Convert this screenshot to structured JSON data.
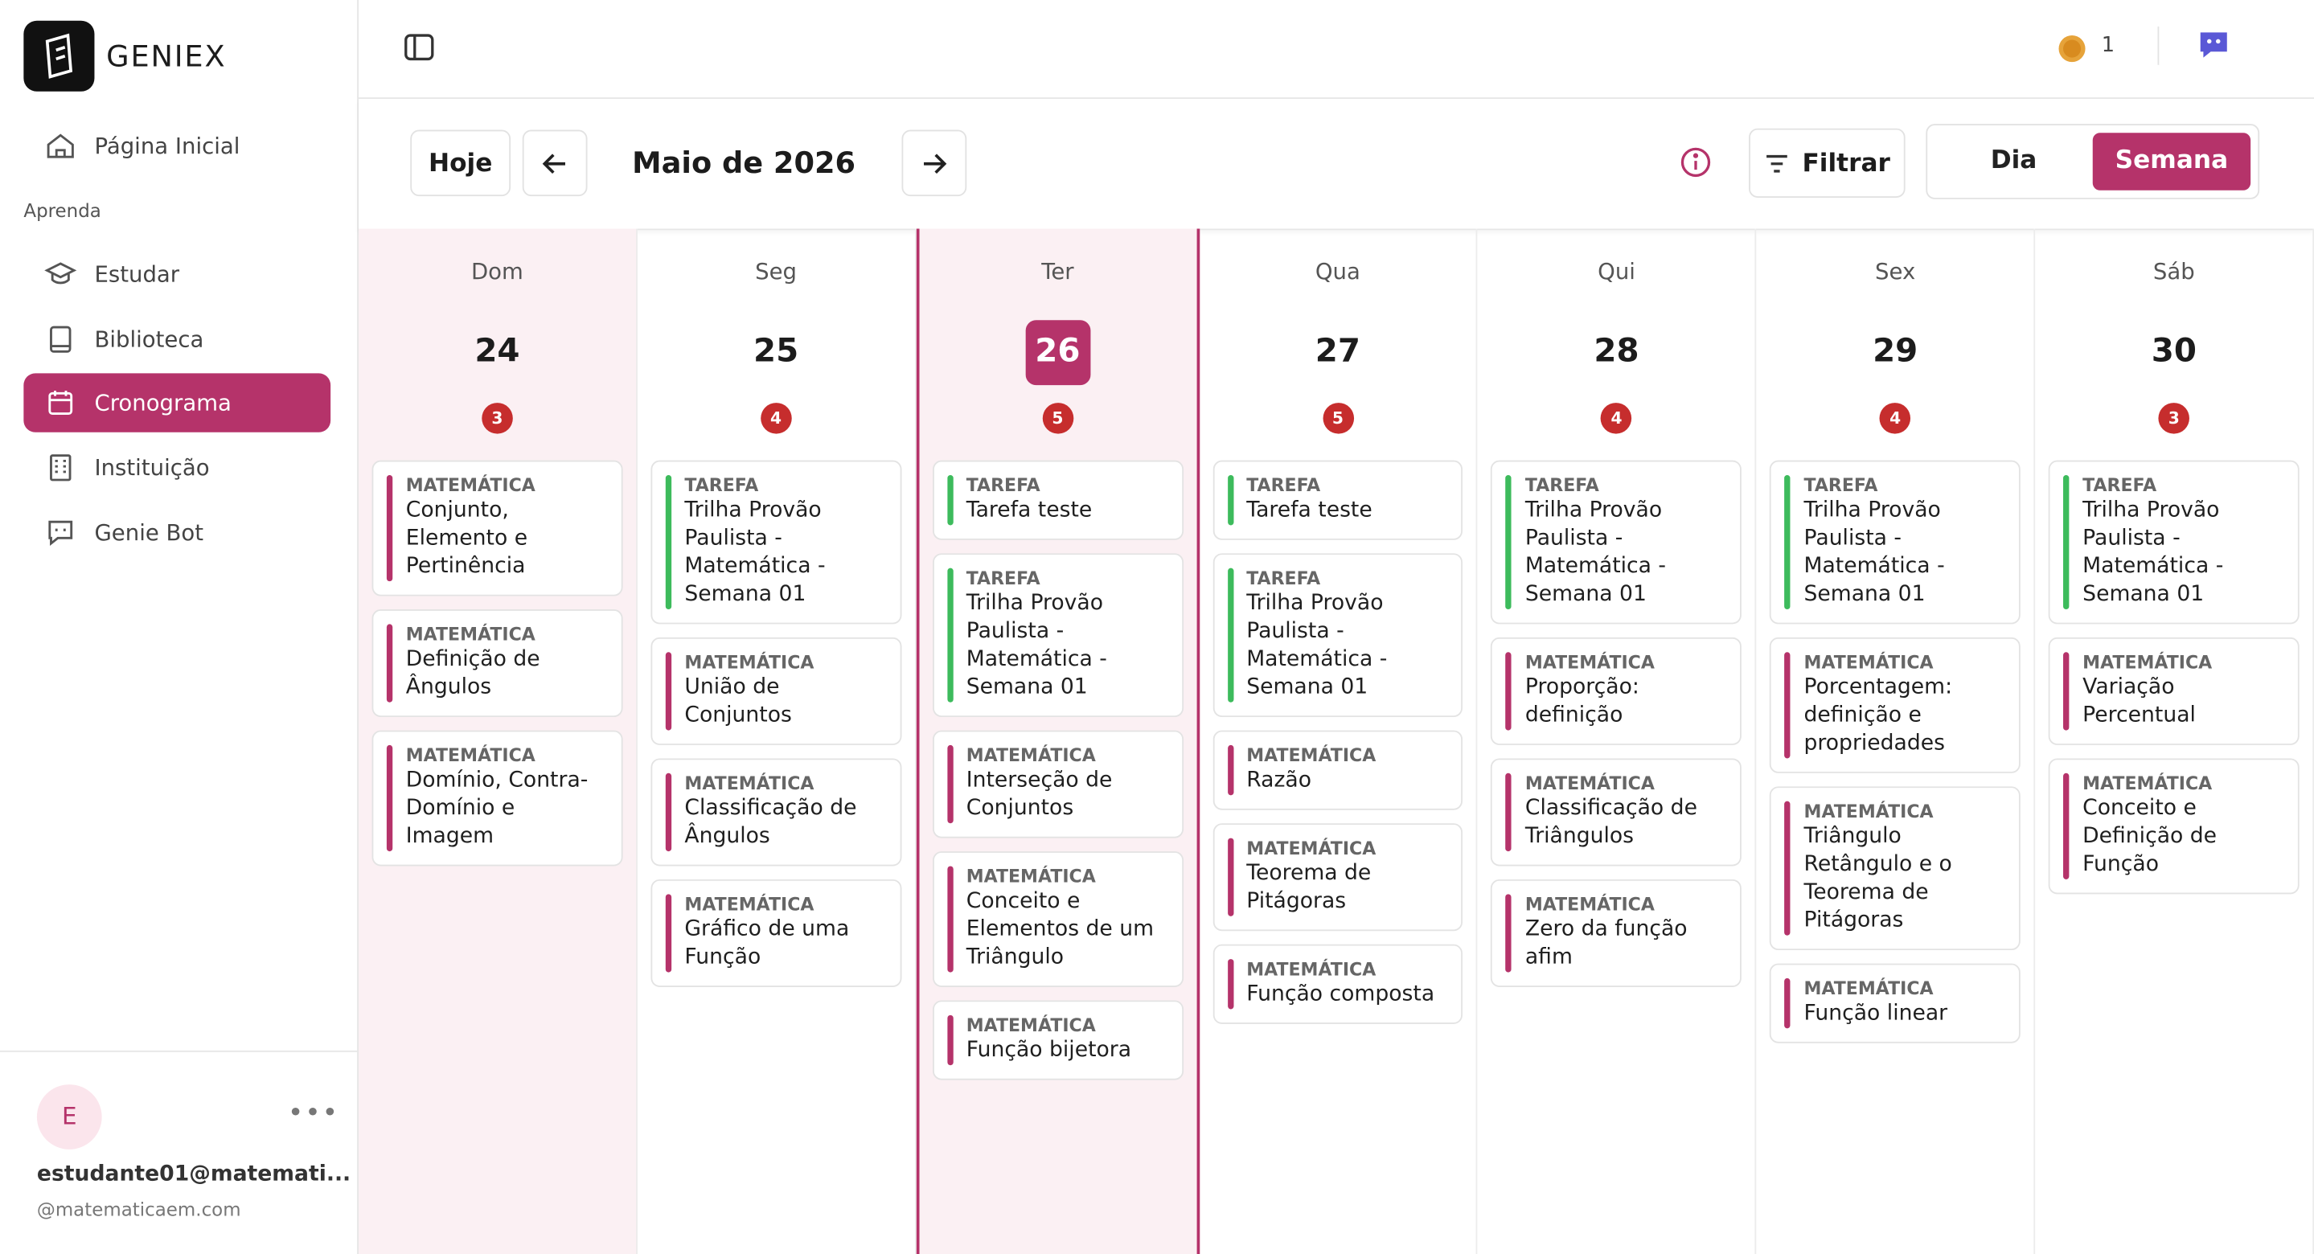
{
  "sidebar": {
    "brand": "GENIEX",
    "home": "Página Inicial",
    "section_label": "Aprenda",
    "nav": [
      {
        "label": "Estudar",
        "active": false
      },
      {
        "label": "Biblioteca",
        "active": false
      },
      {
        "label": "Cronograma",
        "active": true
      },
      {
        "label": "Instituição",
        "active": false
      },
      {
        "label": "Genie Bot",
        "active": false
      }
    ],
    "user": {
      "avatar": "E",
      "email": "estudante01@matemati...",
      "handle": "@matematicaem.com"
    }
  },
  "header": {
    "coins": 1
  },
  "toolbar": {
    "today": "Hoje",
    "month": "Maio de 2026",
    "filter": "Filtrar",
    "views": [
      {
        "label": "Dia",
        "active": false
      },
      {
        "label": "Semana",
        "active": true
      }
    ]
  },
  "days": [
    {
      "weekday": "Dom",
      "date": 24,
      "count": 3,
      "shade": true,
      "today": false,
      "items": [
        {
          "tag": "MATEMÁTICA",
          "title": "Conjunto, Elemento e Pertinência",
          "color": "#b5336a"
        },
        {
          "tag": "MATEMÁTICA",
          "title": "Definição de Ângulos",
          "color": "#b5336a"
        },
        {
          "tag": "MATEMÁTICA",
          "title": "Domínio, Contra-Domínio e Imagem",
          "color": "#b5336a"
        }
      ]
    },
    {
      "weekday": "Seg",
      "date": 25,
      "count": 4,
      "shade": false,
      "today": false,
      "items": [
        {
          "tag": "TAREFA",
          "title": "Trilha Provão Paulista - Matemática - Semana 01",
          "color": "#3dbb5c"
        },
        {
          "tag": "MATEMÁTICA",
          "title": "União de Conjuntos",
          "color": "#b5336a"
        },
        {
          "tag": "MATEMÁTICA",
          "title": "Classificação de Ângulos",
          "color": "#b5336a"
        },
        {
          "tag": "MATEMÁTICA",
          "title": "Gráfico de uma Função",
          "color": "#b5336a"
        }
      ]
    },
    {
      "weekday": "Ter",
      "date": 26,
      "count": 5,
      "shade": true,
      "today": true,
      "items": [
        {
          "tag": "TAREFA",
          "title": "Tarefa teste",
          "color": "#3dbb5c"
        },
        {
          "tag": "TAREFA",
          "title": "Trilha Provão Paulista - Matemática - Semana 01",
          "color": "#3dbb5c"
        },
        {
          "tag": "MATEMÁTICA",
          "title": "Interseção de Conjuntos",
          "color": "#b5336a"
        },
        {
          "tag": "MATEMÁTICA",
          "title": "Conceito e Elementos de um Triângulo",
          "color": "#b5336a"
        },
        {
          "tag": "MATEMÁTICA",
          "title": "Função bijetora",
          "color": "#b5336a"
        }
      ]
    },
    {
      "weekday": "Qua",
      "date": 27,
      "count": 5,
      "shade": false,
      "today": false,
      "items": [
        {
          "tag": "TAREFA",
          "title": "Tarefa teste",
          "color": "#3dbb5c"
        },
        {
          "tag": "TAREFA",
          "title": "Trilha Provão Paulista - Matemática - Semana 01",
          "color": "#3dbb5c"
        },
        {
          "tag": "MATEMÁTICA",
          "title": "Razão",
          "color": "#b5336a"
        },
        {
          "tag": "MATEMÁTICA",
          "title": "Teorema de Pitágoras",
          "color": "#b5336a"
        },
        {
          "tag": "MATEMÁTICA",
          "title": "Função composta",
          "color": "#b5336a"
        }
      ]
    },
    {
      "weekday": "Qui",
      "date": 28,
      "count": 4,
      "shade": false,
      "today": false,
      "items": [
        {
          "tag": "TAREFA",
          "title": "Trilha Provão Paulista - Matemática - Semana 01",
          "color": "#3dbb5c"
        },
        {
          "tag": "MATEMÁTICA",
          "title": "Proporção: definição",
          "color": "#b5336a"
        },
        {
          "tag": "MATEMÁTICA",
          "title": "Classificação de Triângulos",
          "color": "#b5336a"
        },
        {
          "tag": "MATEMÁTICA",
          "title": "Zero da função afim",
          "color": "#b5336a"
        }
      ]
    },
    {
      "weekday": "Sex",
      "date": 29,
      "count": 4,
      "shade": false,
      "today": false,
      "items": [
        {
          "tag": "TAREFA",
          "title": "Trilha Provão Paulista - Matemática - Semana 01",
          "color": "#3dbb5c"
        },
        {
          "tag": "MATEMÁTICA",
          "title": "Porcentagem: definição e propriedades",
          "color": "#b5336a"
        },
        {
          "tag": "MATEMÁTICA",
          "title": "Triângulo Retângulo e o Teorema de Pitágoras",
          "color": "#b5336a"
        },
        {
          "tag": "MATEMÁTICA",
          "title": "Função linear",
          "color": "#b5336a"
        }
      ]
    },
    {
      "weekday": "Sáb",
      "date": 30,
      "count": 3,
      "shade": false,
      "today": false,
      "items": [
        {
          "tag": "TAREFA",
          "title": "Trilha Provão Paulista - Matemática - Semana 01",
          "color": "#3dbb5c"
        },
        {
          "tag": "MATEMÁTICA",
          "title": "Variação Percentual",
          "color": "#b5336a"
        },
        {
          "tag": "MATEMÁTICA",
          "title": "Conceito e Definição de Função",
          "color": "#b5336a"
        }
      ]
    }
  ]
}
